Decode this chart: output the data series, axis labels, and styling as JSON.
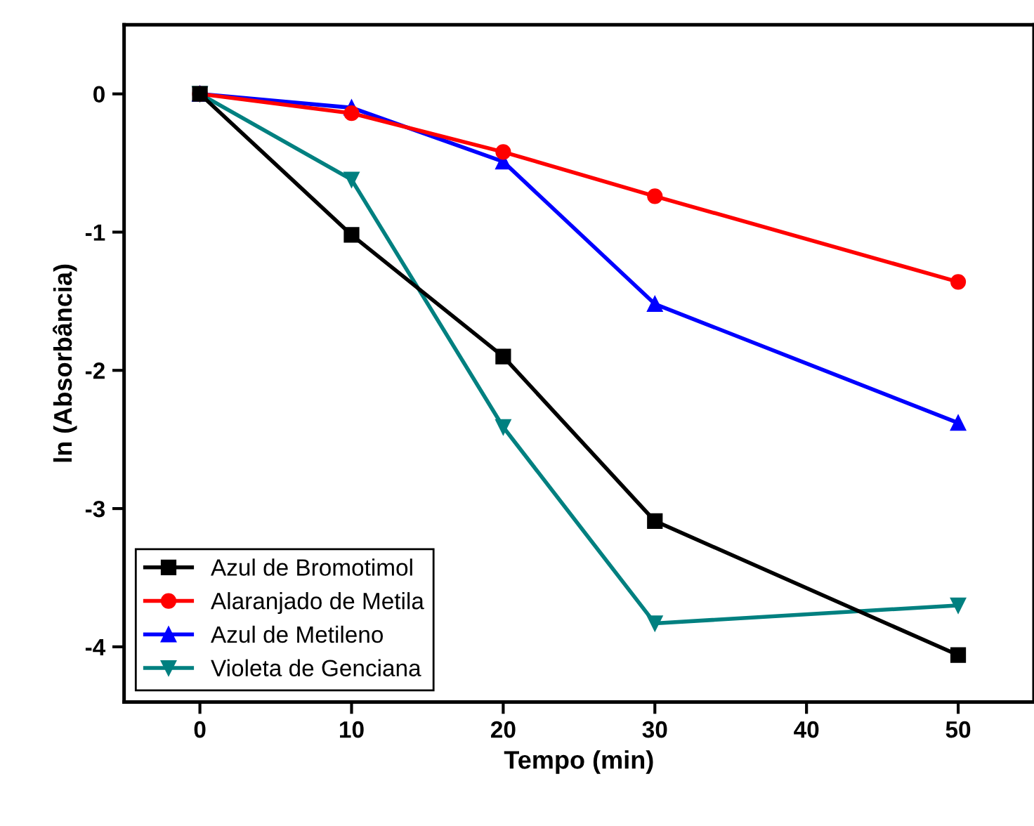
{
  "chart_data": {
    "type": "line",
    "xlabel": "Tempo (min)",
    "ylabel": "ln (Absorbância)",
    "x": [
      0,
      10,
      20,
      30,
      50
    ],
    "series": [
      {
        "name": "Azul de Bromotimol",
        "color": "#000000",
        "marker": "square",
        "values": [
          0,
          -1.02,
          -1.9,
          -3.09,
          -4.06
        ]
      },
      {
        "name": "Alaranjado de Metila",
        "color": "#ff0000",
        "marker": "circle",
        "values": [
          0,
          -0.14,
          -0.42,
          -0.74,
          -1.36
        ]
      },
      {
        "name": "Azul de Metileno",
        "color": "#0000ff",
        "marker": "triangle",
        "values": [
          0,
          -0.1,
          -0.49,
          -1.52,
          -2.38
        ]
      },
      {
        "name": "Violeta de Genciana",
        "color": "#008080",
        "marker": "triangle_down",
        "values": [
          0,
          -0.62,
          -2.41,
          -3.83,
          -3.7
        ]
      }
    ],
    "xlim": [
      -5,
      55
    ],
    "xticks": [
      0,
      10,
      20,
      30,
      40,
      50
    ],
    "ylim": [
      -4.4,
      0.5
    ],
    "yticks": [
      0,
      -1,
      -2,
      -3,
      -4
    ],
    "grid": false,
    "legend": "bottom left",
    "line_style": "solid"
  }
}
